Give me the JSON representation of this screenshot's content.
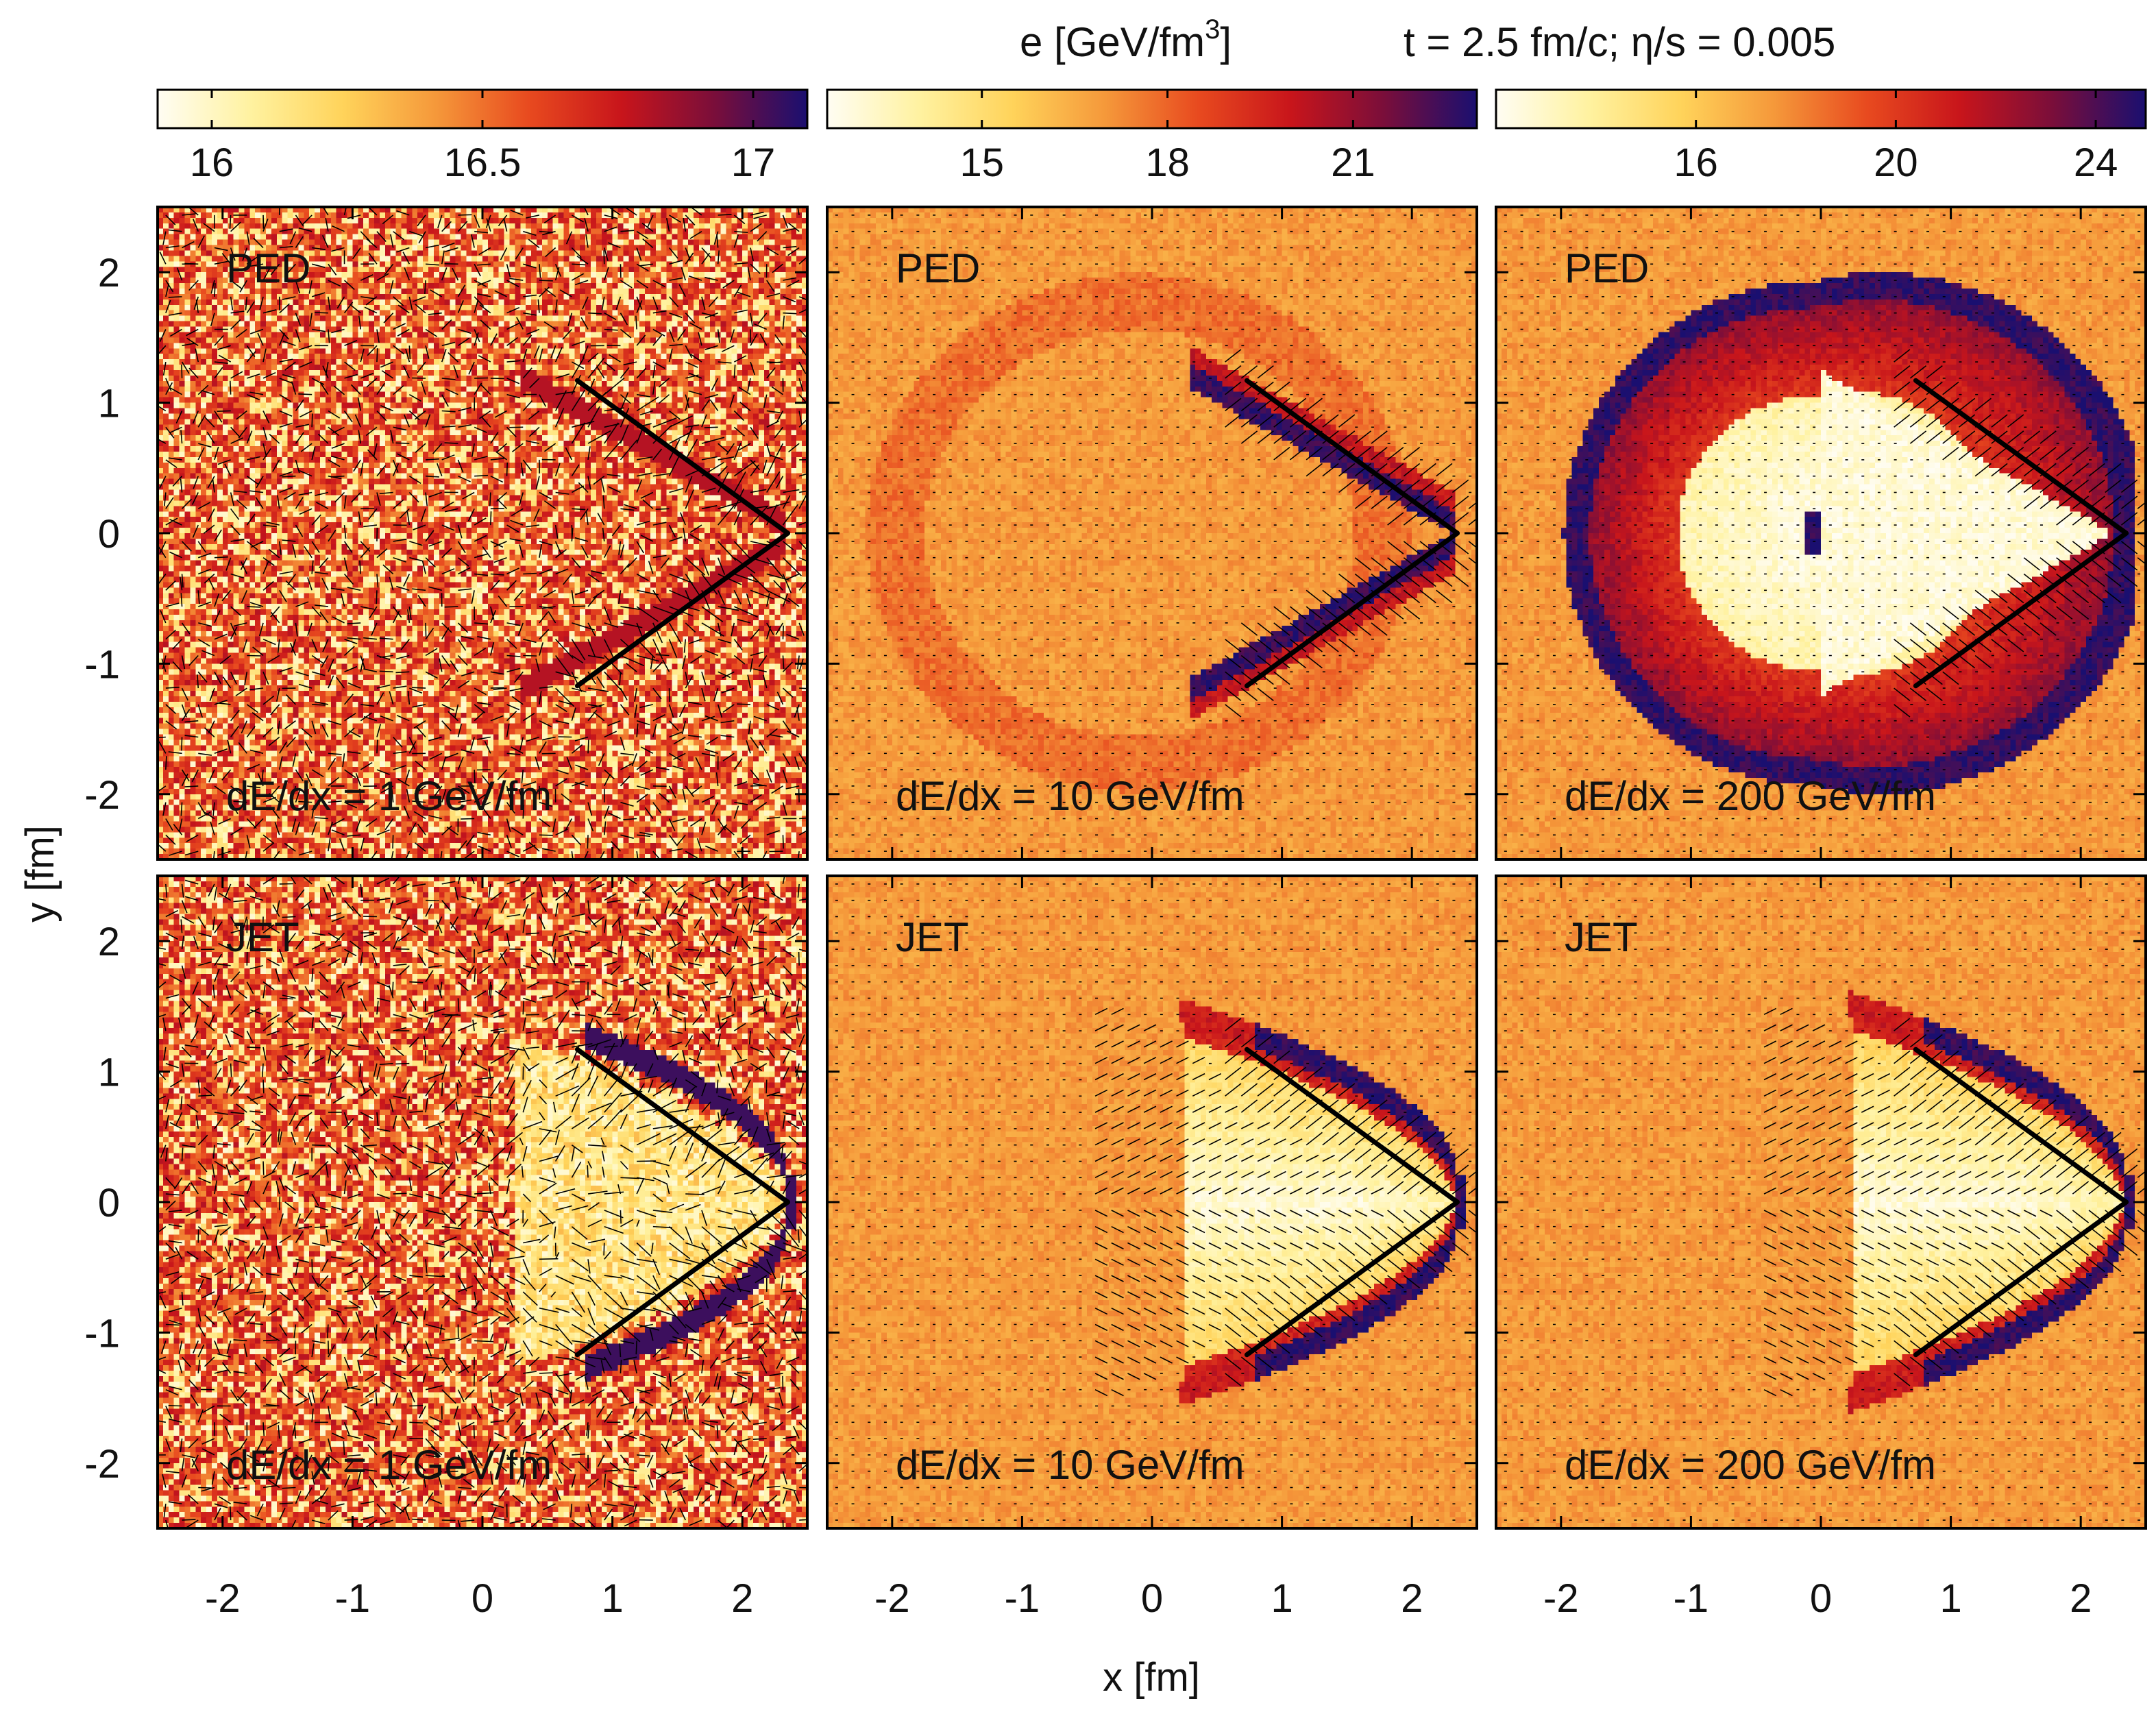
{
  "chart_data": {
    "type": "heatmap",
    "header": {
      "quantity_label": "e [GeV/fm",
      "quantity_exp": "3",
      "quantity_close": "]",
      "conditions": "t = 2.5 fm/c; η/s = 0.005"
    },
    "xlabel": "x [fm]",
    "ylabel": "y [fm]",
    "xlim": [
      -2.5,
      2.5
    ],
    "ylim": [
      -2.5,
      2.5
    ],
    "xticks": [
      -2,
      -1,
      0,
      1,
      2
    ],
    "yticks": [
      2,
      1,
      0,
      -1,
      -2
    ],
    "colormap": [
      "#fffdf3",
      "#fff2a0",
      "#ffd35a",
      "#f5983a",
      "#e84a1f",
      "#c8151b",
      "#7a0e3a",
      "#1a0f70"
    ],
    "cone_lines": {
      "apex": [
        2.35,
        0
      ],
      "ends": [
        [
          0.73,
          1.17
        ],
        [
          0.73,
          -1.17
        ]
      ]
    },
    "columns": [
      {
        "dEdx_label": "dE/dx = 1 GeV/fm",
        "colorbar": {
          "range": [
            15.9,
            17.1
          ],
          "ticks": [
            16,
            16.5,
            17
          ],
          "tick_labels": [
            "16",
            "16.5",
            "17"
          ]
        }
      },
      {
        "dEdx_label": "dE/dx = 10 GeV/fm",
        "colorbar": {
          "range": [
            12.5,
            23.0
          ],
          "ticks": [
            15,
            18,
            21
          ],
          "tick_labels": [
            "15",
            "18",
            "21"
          ]
        }
      },
      {
        "dEdx_label": "dE/dx = 200 GeV/fm",
        "colorbar": {
          "range": [
            12.0,
            25.0
          ],
          "ticks": [
            16,
            20,
            24
          ],
          "tick_labels": [
            "16",
            "20",
            "24"
          ]
        }
      }
    ],
    "rows": [
      {
        "source_label": "PED"
      },
      {
        "source_label": "JET"
      }
    ],
    "panels": [
      {
        "row": 0,
        "col": 0,
        "source": "PED",
        "dEdx": 1,
        "background": 16.45,
        "noise": "strong",
        "pattern": "ped"
      },
      {
        "row": 0,
        "col": 1,
        "source": "PED",
        "dEdx": 10,
        "background": 16.0,
        "noise": "weak",
        "pattern": "ped"
      },
      {
        "row": 0,
        "col": 2,
        "source": "PED",
        "dEdx": 200,
        "background": 16.0,
        "noise": "weak",
        "pattern": "ped"
      },
      {
        "row": 1,
        "col": 0,
        "source": "JET",
        "dEdx": 1,
        "background": 16.45,
        "noise": "strong",
        "pattern": "jet"
      },
      {
        "row": 1,
        "col": 1,
        "source": "JET",
        "dEdx": 10,
        "background": 16.0,
        "noise": "weak",
        "pattern": "jet"
      },
      {
        "row": 1,
        "col": 2,
        "source": "JET",
        "dEdx": 200,
        "background": 16.0,
        "noise": "weak",
        "pattern": "jet"
      }
    ]
  }
}
